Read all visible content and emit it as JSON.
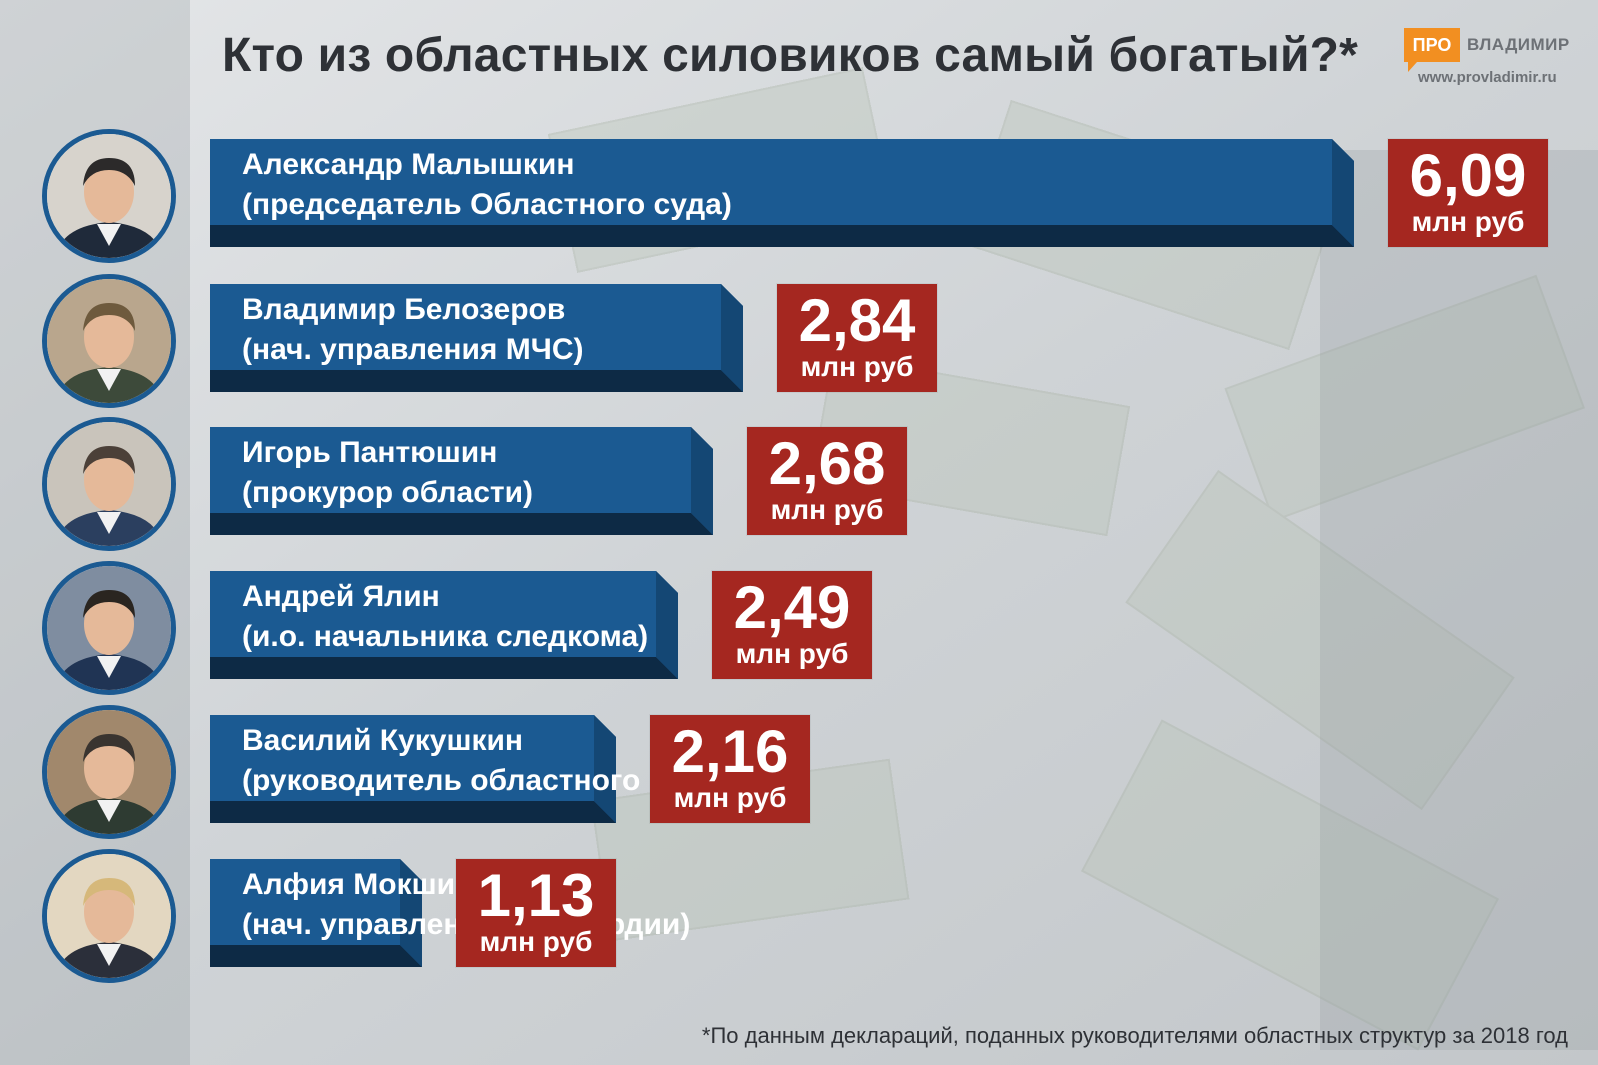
{
  "title": "Кто из областных силовиков самый богатый?*",
  "logo": {
    "pro": "ПРО",
    "name": "ВЛАДИМИР",
    "url": "www.provladimir.ru"
  },
  "footnote": "*По данным деклараций, поданных руководителями областных структур за 2018 год",
  "colors": {
    "bar": "#1b5a92",
    "bar_shadow": "#0d2a45",
    "value_box": "#a52720",
    "title": "#2e3136",
    "logo_accent": "#f28f21"
  },
  "chart_data": {
    "type": "bar",
    "orientation": "horizontal",
    "title": "Кто из областных силовиков самый богатый?*",
    "unit": "млн руб",
    "categories": [
      "Александр Малышкин (председатель Областного суда)",
      "Владимир Белозеров (нач. управления МЧС)",
      "Игорь Пантюшин (прокурор области)",
      "Андрей Ялин (и.о. начальника следкома)",
      "Василий Кукушкин (руководитель областного МВД)",
      "Алфия Мокшина (нач. управления Росгвардии)"
    ],
    "values": [
      6.09,
      2.84,
      2.68,
      2.49,
      2.16,
      1.13
    ],
    "rows": [
      {
        "name": "Александр Малышкин",
        "role": "(председатель Областного суда)",
        "value": 6.09,
        "value_label": "6,09",
        "unit": "млн руб"
      },
      {
        "name": "Владимир Белозеров",
        "role": "(нач. управления МЧС)",
        "value": 2.84,
        "value_label": "2,84",
        "unit": "млн руб"
      },
      {
        "name": "Игорь Пантюшин",
        "role": "(прокурор области)",
        "value": 2.68,
        "value_label": "2,68",
        "unit": "млн руб"
      },
      {
        "name": "Андрей Ялин",
        "role": "(и.о. начальника следкома)",
        "value": 2.49,
        "value_label": "2,49",
        "unit": "млн руб"
      },
      {
        "name": "Василий Кукушкин",
        "role": "(руководитель областного МВД)",
        "value": 2.16,
        "value_label": "2,16",
        "unit": "млн руб"
      },
      {
        "name": "Алфия Мокшина",
        "role": "(нач. управления Росгвардии)",
        "value": 1.13,
        "value_label": "1,13",
        "unit": "млн руб"
      }
    ]
  }
}
